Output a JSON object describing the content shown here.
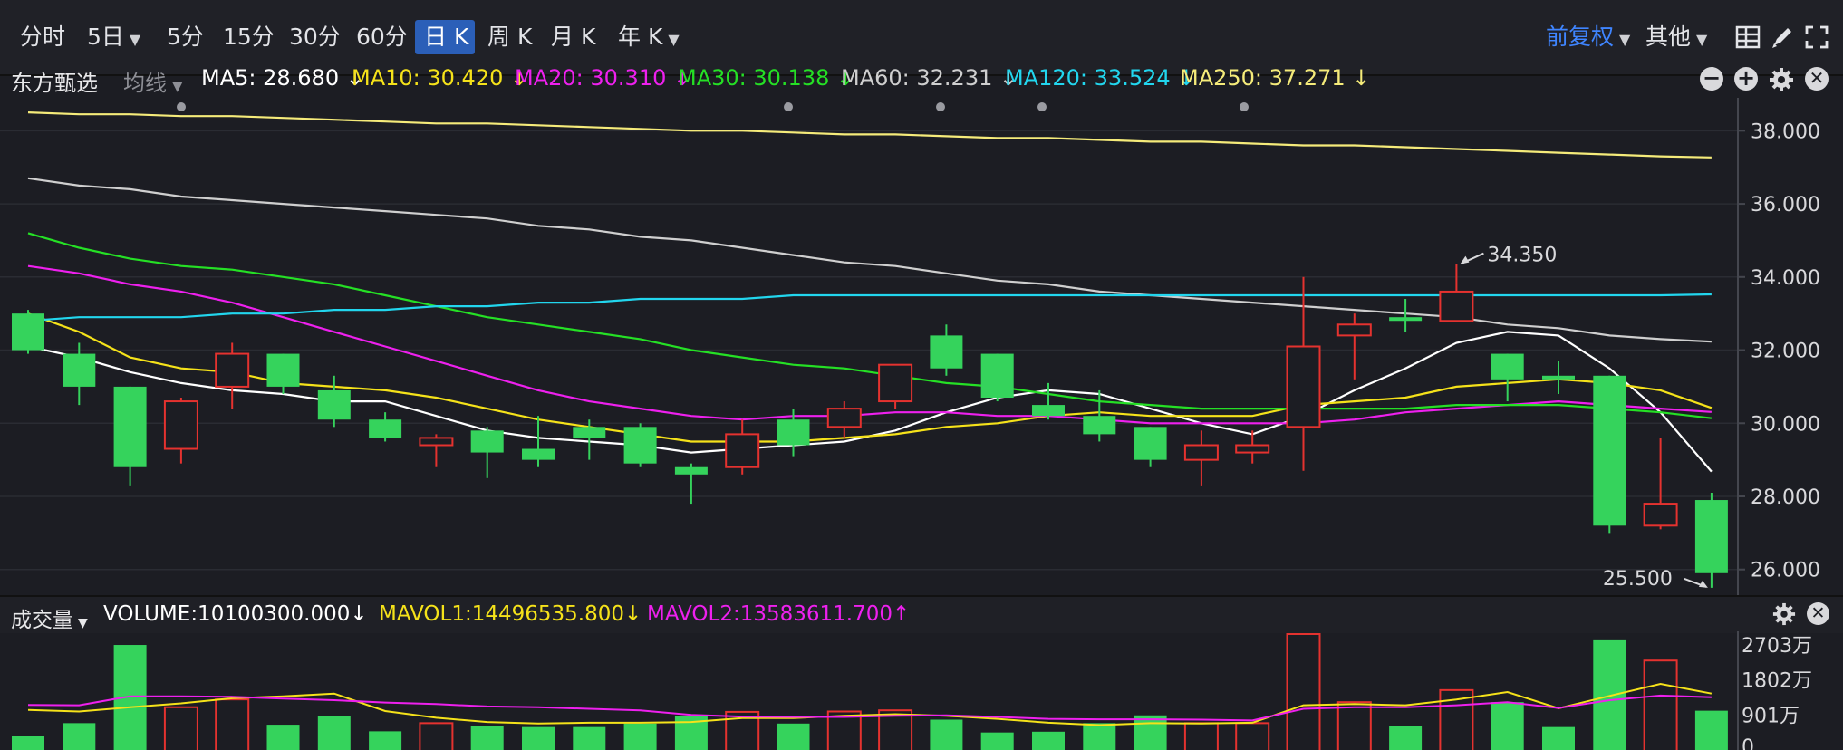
{
  "toolbar": {
    "periods": [
      {
        "label": "分时",
        "chev": false,
        "active": false
      },
      {
        "label": "5日",
        "chev": true,
        "active": false
      },
      {
        "label": "5分",
        "chev": false,
        "active": false
      },
      {
        "label": "15分",
        "chev": false,
        "active": false
      },
      {
        "label": "30分",
        "chev": false,
        "active": false
      },
      {
        "label": "60分",
        "chev": false,
        "active": false
      },
      {
        "label": "日 K",
        "chev": false,
        "active": true
      },
      {
        "label": "周 K",
        "chev": false,
        "active": false
      },
      {
        "label": "月 K",
        "chev": false,
        "active": false
      },
      {
        "label": "年 K",
        "chev": true,
        "active": false
      }
    ],
    "adjust_label": "前复权",
    "other_label": "其他"
  },
  "main_legend": {
    "stock_name": "东方甄选",
    "indicator_type": "均线",
    "items": [
      {
        "text": "MA5: 28.680 ↓",
        "color": "#ffffff"
      },
      {
        "text": "MA10: 30.420 ↓",
        "color": "#f5e21a"
      },
      {
        "text": "MA20: 30.310 ↓",
        "color": "#ee20ee"
      },
      {
        "text": "MA30: 30.138 ↓",
        "color": "#25e025"
      },
      {
        "text": "MA60: 32.231 ↓",
        "color": "#cfcfcf"
      },
      {
        "text": "MA120: 33.524 ↓",
        "color": "#22d6ee"
      },
      {
        "text": "MA250: 37.271 ↓",
        "color": "#f5eb7a"
      }
    ]
  },
  "volume_legend": {
    "title": "成交量",
    "items": [
      {
        "text": "VOLUME:10100300.000↓",
        "color": "#ffffff"
      },
      {
        "text": "MAVOL1:14496535.800↓",
        "color": "#f5e21a"
      },
      {
        "text": "MAVOL2:13583611.700↑",
        "color": "#ee20ee"
      }
    ]
  },
  "colors": {
    "up": "#e5322f",
    "down": "#35d35c",
    "grid": "#2a2c33",
    "axis_text": "#d9d9dc"
  },
  "chart_data": [
    {
      "type": "candlestick",
      "y_ticks": [
        26,
        28,
        30,
        32,
        34,
        36,
        38
      ],
      "y_tick_labels": [
        "26.000",
        "28.000",
        "30.000",
        "32.000",
        "34.000",
        "36.000",
        "38.000"
      ],
      "ylim": [
        25.3,
        38.9
      ],
      "annotations": [
        {
          "text": "34.350",
          "candle": 28,
          "value": 34.35
        },
        {
          "text": "25.500",
          "candle": 33,
          "value": 25.5
        }
      ],
      "candles": [
        {
          "o": 33.0,
          "c": 32.0,
          "h": 33.1,
          "l": 31.9
        },
        {
          "o": 31.9,
          "c": 31.0,
          "h": 32.2,
          "l": 30.5
        },
        {
          "o": 31.0,
          "c": 28.8,
          "h": 31.0,
          "l": 28.3
        },
        {
          "o": 29.3,
          "c": 30.6,
          "h": 30.7,
          "l": 28.9
        },
        {
          "o": 31.0,
          "c": 31.9,
          "h": 32.2,
          "l": 30.4
        },
        {
          "o": 31.9,
          "c": 31.0,
          "h": 31.9,
          "l": 30.8
        },
        {
          "o": 30.9,
          "c": 30.1,
          "h": 31.3,
          "l": 29.9
        },
        {
          "o": 30.1,
          "c": 29.6,
          "h": 30.3,
          "l": 29.5
        },
        {
          "o": 29.4,
          "c": 29.6,
          "h": 29.7,
          "l": 28.8
        },
        {
          "o": 29.8,
          "c": 29.2,
          "h": 29.9,
          "l": 28.5
        },
        {
          "o": 29.3,
          "c": 29.0,
          "h": 30.2,
          "l": 28.8
        },
        {
          "o": 29.9,
          "c": 29.6,
          "h": 30.1,
          "l": 29.0
        },
        {
          "o": 29.9,
          "c": 28.9,
          "h": 30.0,
          "l": 28.8
        },
        {
          "o": 28.8,
          "c": 28.6,
          "h": 28.9,
          "l": 27.8
        },
        {
          "o": 28.8,
          "c": 29.7,
          "h": 30.1,
          "l": 28.6
        },
        {
          "o": 30.1,
          "c": 29.4,
          "h": 30.4,
          "l": 29.1
        },
        {
          "o": 29.9,
          "c": 30.4,
          "h": 30.6,
          "l": 29.6
        },
        {
          "o": 30.6,
          "c": 31.6,
          "h": 31.6,
          "l": 30.4
        },
        {
          "o": 32.4,
          "c": 31.5,
          "h": 32.7,
          "l": 31.3
        },
        {
          "o": 31.9,
          "c": 30.7,
          "h": 31.9,
          "l": 30.6
        },
        {
          "o": 30.5,
          "c": 30.2,
          "h": 31.1,
          "l": 30.1
        },
        {
          "o": 30.2,
          "c": 29.7,
          "h": 30.9,
          "l": 29.5
        },
        {
          "o": 29.9,
          "c": 29.0,
          "h": 29.9,
          "l": 28.8
        },
        {
          "o": 29.0,
          "c": 29.4,
          "h": 29.8,
          "l": 28.3
        },
        {
          "o": 29.2,
          "c": 29.4,
          "h": 29.8,
          "l": 28.9
        },
        {
          "o": 29.9,
          "c": 32.1,
          "h": 34.0,
          "l": 28.7
        },
        {
          "o": 32.4,
          "c": 32.7,
          "h": 33.0,
          "l": 31.2
        },
        {
          "o": 32.9,
          "c": 32.8,
          "h": 33.4,
          "l": 32.5
        },
        {
          "o": 32.8,
          "c": 33.6,
          "h": 34.35,
          "l": 32.8
        },
        {
          "o": 31.9,
          "c": 31.2,
          "h": 31.9,
          "l": 30.6
        },
        {
          "o": 31.3,
          "c": 31.2,
          "h": 31.7,
          "l": 30.8
        },
        {
          "o": 31.3,
          "c": 27.2,
          "h": 31.3,
          "l": 27.0
        },
        {
          "o": 27.2,
          "c": 27.8,
          "h": 29.6,
          "l": 27.1
        },
        {
          "o": 27.9,
          "c": 25.9,
          "h": 28.1,
          "l": 25.5
        }
      ],
      "series": [
        {
          "name": "MA5",
          "color": "#ffffff",
          "values": [
            32.1,
            31.8,
            31.4,
            31.1,
            30.9,
            30.8,
            30.6,
            30.6,
            30.2,
            29.8,
            29.6,
            29.5,
            29.4,
            29.2,
            29.3,
            29.4,
            29.5,
            29.8,
            30.3,
            30.7,
            30.9,
            30.8,
            30.4,
            30.0,
            29.7,
            30.2,
            30.9,
            31.5,
            32.2,
            32.5,
            32.4,
            31.5,
            30.3,
            28.68
          ]
        },
        {
          "name": "MA10",
          "color": "#f5e21a",
          "values": [
            33.0,
            32.5,
            31.8,
            31.5,
            31.4,
            31.1,
            31.0,
            30.9,
            30.7,
            30.4,
            30.1,
            29.9,
            29.7,
            29.5,
            29.5,
            29.5,
            29.6,
            29.7,
            29.9,
            30.0,
            30.2,
            30.3,
            30.2,
            30.2,
            30.2,
            30.5,
            30.6,
            30.7,
            31.0,
            31.1,
            31.2,
            31.1,
            30.9,
            30.42
          ]
        },
        {
          "name": "MA20",
          "color": "#ee20ee",
          "values": [
            34.3,
            34.1,
            33.8,
            33.6,
            33.3,
            32.9,
            32.5,
            32.1,
            31.7,
            31.3,
            30.9,
            30.6,
            30.4,
            30.2,
            30.1,
            30.2,
            30.2,
            30.3,
            30.3,
            30.2,
            30.2,
            30.1,
            30.0,
            30.0,
            30.0,
            30.0,
            30.1,
            30.3,
            30.4,
            30.5,
            30.6,
            30.5,
            30.4,
            30.31
          ]
        },
        {
          "name": "MA30",
          "color": "#25e025",
          "values": [
            35.2,
            34.8,
            34.5,
            34.3,
            34.2,
            34.0,
            33.8,
            33.5,
            33.2,
            32.9,
            32.7,
            32.5,
            32.3,
            32.0,
            31.8,
            31.6,
            31.5,
            31.3,
            31.1,
            31.0,
            30.8,
            30.6,
            30.5,
            30.4,
            30.4,
            30.4,
            30.4,
            30.4,
            30.5,
            30.5,
            30.5,
            30.4,
            30.3,
            30.138
          ]
        },
        {
          "name": "MA60",
          "color": "#cfcfcf",
          "values": [
            36.7,
            36.5,
            36.4,
            36.2,
            36.1,
            36.0,
            35.9,
            35.8,
            35.7,
            35.6,
            35.4,
            35.3,
            35.1,
            35.0,
            34.8,
            34.6,
            34.4,
            34.3,
            34.1,
            33.9,
            33.8,
            33.6,
            33.5,
            33.4,
            33.3,
            33.2,
            33.1,
            33.0,
            32.9,
            32.7,
            32.6,
            32.4,
            32.3,
            32.231
          ]
        },
        {
          "name": "MA120",
          "color": "#22d6ee",
          "values": [
            32.8,
            32.9,
            32.9,
            32.9,
            33.0,
            33.0,
            33.1,
            33.1,
            33.2,
            33.2,
            33.3,
            33.3,
            33.4,
            33.4,
            33.4,
            33.5,
            33.5,
            33.5,
            33.5,
            33.5,
            33.5,
            33.5,
            33.5,
            33.5,
            33.5,
            33.5,
            33.5,
            33.5,
            33.5,
            33.5,
            33.5,
            33.5,
            33.5,
            33.524
          ]
        },
        {
          "name": "MA250",
          "color": "#f5eb7a",
          "values": [
            38.5,
            38.45,
            38.45,
            38.4,
            38.4,
            38.35,
            38.3,
            38.25,
            38.2,
            38.2,
            38.15,
            38.1,
            38.05,
            38.0,
            38.0,
            37.95,
            37.9,
            37.9,
            37.85,
            37.8,
            37.8,
            37.75,
            37.7,
            37.7,
            37.65,
            37.6,
            37.6,
            37.55,
            37.5,
            37.45,
            37.4,
            37.35,
            37.3,
            37.271
          ]
        }
      ]
    },
    {
      "type": "bar",
      "unit_note": "万",
      "y_ticks": [
        0,
        901,
        1802,
        2703
      ],
      "y_tick_labels": [
        "0",
        "901万",
        "1802万",
        "2703万"
      ],
      "ylim": [
        0,
        3050
      ],
      "values": [
        350,
        690,
        2700,
        1100,
        1300,
        650,
        870,
        480,
        690,
        620,
        590,
        590,
        680,
        880,
        980,
        680,
        990,
        1020,
        780,
        450,
        470,
        690,
        890,
        690,
        690,
        2980,
        1230,
        620,
        1540,
        1230,
        590,
        2820,
        2300,
        1010
      ],
      "series": [
        {
          "name": "MAVOL1",
          "color": "#f5e21a",
          "values": [
            1030,
            990,
            1100,
            1200,
            1330,
            1380,
            1450,
            1000,
            830,
            720,
            680,
            700,
            700,
            720,
            820,
            820,
            880,
            920,
            880,
            800,
            700,
            640,
            690,
            680,
            700,
            1150,
            1180,
            1150,
            1300,
            1490,
            1070,
            1390,
            1700,
            1450
          ]
        },
        {
          "name": "MAVOL2",
          "color": "#ee20ee",
          "values": [
            1160,
            1150,
            1380,
            1380,
            1370,
            1320,
            1280,
            1220,
            1180,
            1120,
            1100,
            1060,
            1020,
            900,
            860,
            850,
            850,
            880,
            890,
            850,
            800,
            790,
            790,
            780,
            760,
            1060,
            1100,
            1100,
            1150,
            1230,
            1080,
            1280,
            1400,
            1358
          ]
        }
      ]
    }
  ]
}
